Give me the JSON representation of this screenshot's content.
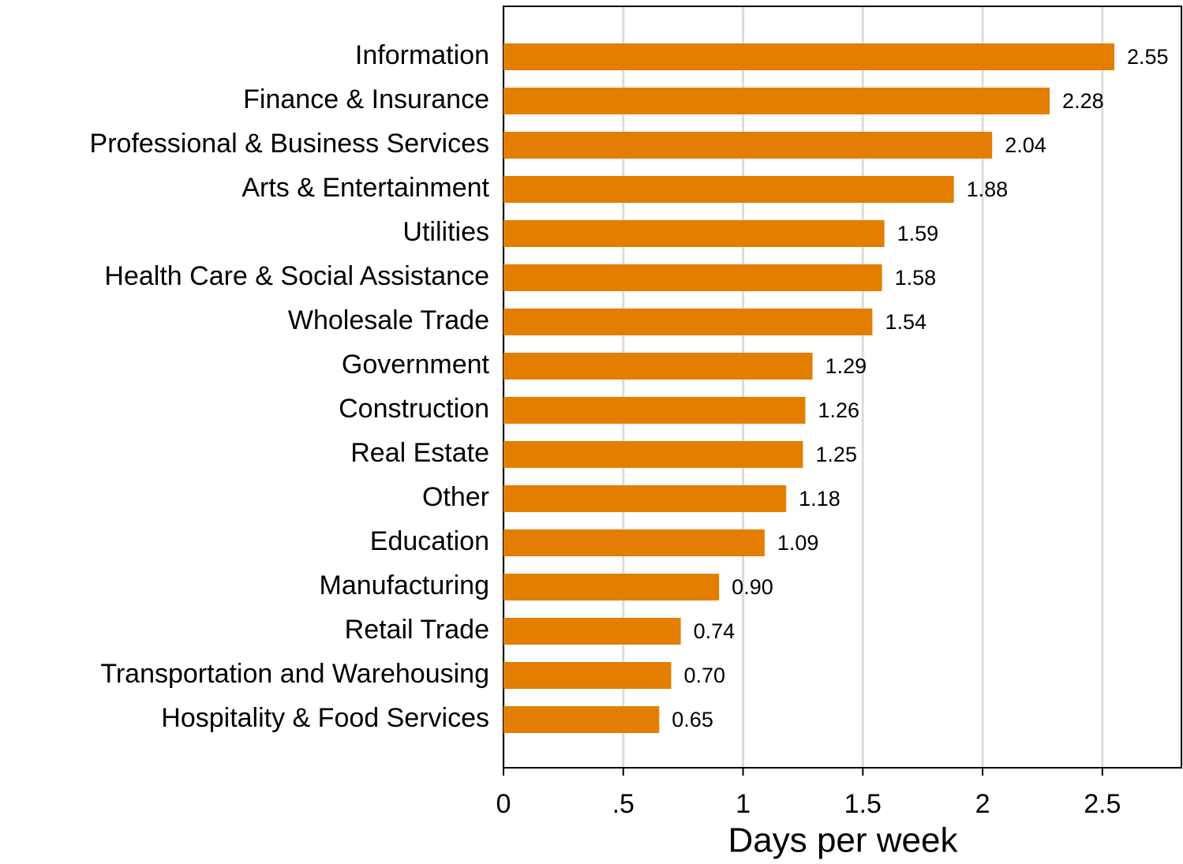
{
  "chart_data": {
    "type": "barh",
    "xlabel": "Days per week",
    "categories": [
      "Information",
      "Finance & Insurance",
      "Professional & Business Services",
      "Arts & Entertainment",
      "Utilities",
      "Health Care & Social Assistance",
      "Wholesale Trade",
      "Government",
      "Construction",
      "Real Estate",
      "Other",
      "Education",
      "Manufacturing",
      "Retail Trade",
      "Transportation and Warehousing",
      "Hospitality & Food Services"
    ],
    "values": [
      2.55,
      2.28,
      2.04,
      1.88,
      1.59,
      1.58,
      1.54,
      1.29,
      1.26,
      1.25,
      1.18,
      1.09,
      0.9,
      0.74,
      0.7,
      0.65
    ],
    "value_labels": [
      "2.55",
      "2.28",
      "2.04",
      "1.88",
      "1.59",
      "1.58",
      "1.54",
      "1.29",
      "1.26",
      "1.25",
      "1.18",
      "1.09",
      "0.90",
      "0.74",
      "0.70",
      "0.65"
    ],
    "color": "#e37e00",
    "xlim": [
      0,
      2.83
    ],
    "xticks": [
      0,
      {
        "value": 0.5,
        "label": ".5"
      },
      1,
      1.5,
      2,
      2.5
    ],
    "grid": true
  }
}
